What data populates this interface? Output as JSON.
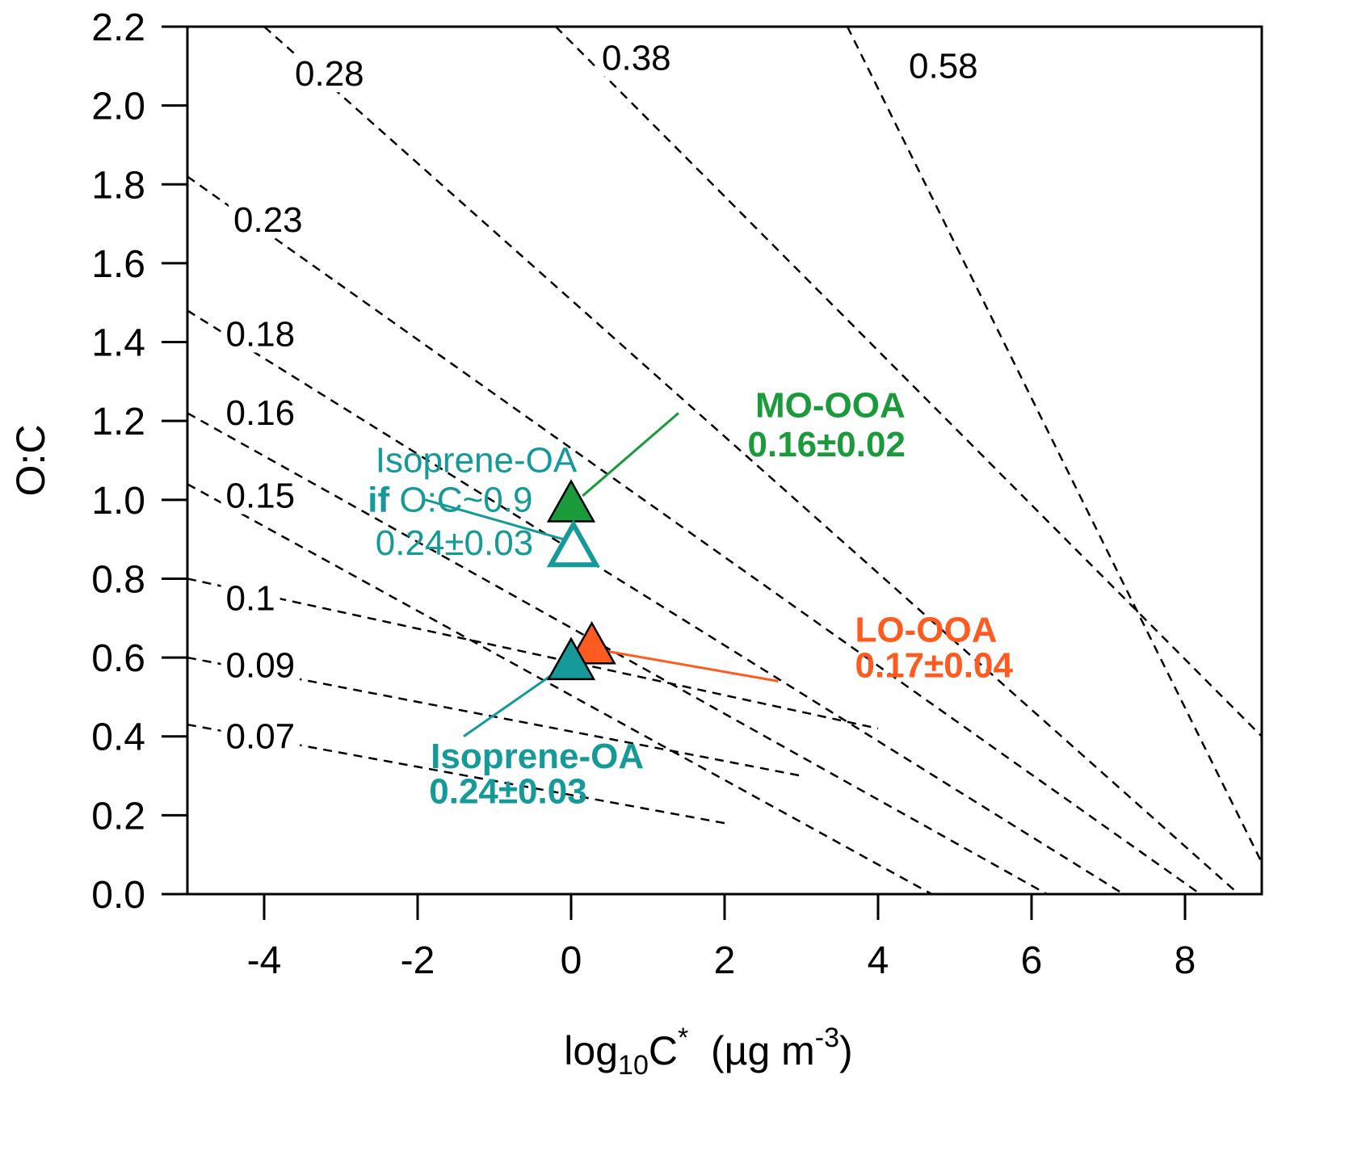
{
  "chart_data": {
    "type": "scatter",
    "title": "",
    "xlabel": {
      "base": "log",
      "sub": "10",
      "main": "C",
      "sup": "*",
      "unit_open": "  (µg m",
      "unit_sup": "-3",
      "unit_close": ")"
    },
    "ylabel": "O:C",
    "xlim": [
      -5,
      9
    ],
    "ylim": [
      0,
      2.2
    ],
    "xticks": [
      -4,
      -2,
      0,
      2,
      4,
      6,
      8
    ],
    "yticks": [
      0.0,
      0.2,
      0.4,
      0.6,
      0.8,
      1.0,
      1.2,
      1.4,
      1.6,
      1.8,
      2.0,
      2.2
    ],
    "ytick_labels": [
      "0.0",
      "0.2",
      "0.4",
      "0.6",
      "0.8",
      "1.0",
      "1.2",
      "1.4",
      "1.6",
      "1.8",
      "2.0",
      "2.2"
    ],
    "grid": false,
    "isolines": [
      {
        "label": "0.07",
        "p1": [
          -5,
          0.43
        ],
        "p2": [
          2,
          0.18
        ],
        "label_at": [
          -4.5,
          0.37
        ]
      },
      {
        "label": "0.09",
        "p1": [
          -5,
          0.6
        ],
        "p2": [
          3,
          0.3
        ],
        "label_at": [
          -4.5,
          0.55
        ]
      },
      {
        "label": "0.1",
        "p1": [
          -5,
          0.8
        ],
        "p2": [
          4,
          0.42
        ],
        "label_at": [
          -4.5,
          0.72
        ]
      },
      {
        "label": "0.15",
        "p1": [
          -5,
          1.04
        ],
        "p2": [
          4.7,
          0.0
        ],
        "label_at": [
          -4.5,
          0.98
        ]
      },
      {
        "label": "0.16",
        "p1": [
          -5,
          1.22
        ],
        "p2": [
          6.2,
          0.0
        ],
        "label_at": [
          -4.5,
          1.19
        ]
      },
      {
        "label": "0.18",
        "p1": [
          -5,
          1.48
        ],
        "p2": [
          7.2,
          0.0
        ],
        "label_at": [
          -4.5,
          1.39
        ]
      },
      {
        "label": "0.23",
        "p1": [
          -5,
          1.82
        ],
        "p2": [
          8.2,
          0.0
        ],
        "label_at": [
          -4.4,
          1.68
        ]
      },
      {
        "label": "0.28",
        "p1": [
          -4.0,
          2.2
        ],
        "p2": [
          8.7,
          0.0
        ],
        "label_at": [
          -3.6,
          2.05
        ]
      },
      {
        "label": "0.38",
        "p1": [
          -0.2,
          2.2
        ],
        "p2": [
          9,
          0.4
        ],
        "label_at": [
          0.4,
          2.09
        ]
      },
      {
        "label": "0.58",
        "p1": [
          3.6,
          2.2
        ],
        "p2": [
          9,
          0.08
        ],
        "label_at": [
          4.4,
          2.07
        ]
      }
    ],
    "series": [
      {
        "name": "MO-OOA",
        "x": 0.0,
        "y": 0.99,
        "color": "#1a9a3a",
        "filled": true
      },
      {
        "name": "Isoprene-OA if O:C~0.9",
        "x": 0.03,
        "y": 0.88,
        "color": "#159999",
        "filled": false
      },
      {
        "name": "LO-OOA",
        "x": 0.27,
        "y": 0.63,
        "color": "#ff5a1f",
        "filled": true
      },
      {
        "name": "Isoprene-OA",
        "x": 0.0,
        "y": 0.59,
        "color": "#159999",
        "filled": true
      }
    ],
    "annotations": [
      {
        "name": "mo-ooa",
        "lines": [
          {
            "text": "MO-OOA",
            "x": 2.4,
            "y": 1.21,
            "bold": true
          },
          {
            "text": "0.16±0.02",
            "x": 2.3,
            "y": 1.11,
            "bold": true
          }
        ],
        "color": "#1a9a3a",
        "leader": [
          [
            0.15,
            1.01
          ],
          [
            1.4,
            1.22
          ]
        ]
      },
      {
        "name": "isoprene-if",
        "lines": [
          {
            "text": "Isoprene-OA",
            "x": -2.55,
            "y": 1.07,
            "bold": false
          },
          {
            "text_bold": "if",
            "text": " O:C~0.9",
            "x": -2.65,
            "y": 0.97,
            "bold": false
          },
          {
            "text": "0.24±0.03",
            "x": -2.55,
            "y": 0.86,
            "bold": false
          }
        ],
        "color": "#159999",
        "leader": [
          [
            -1.9,
            1.0
          ],
          [
            -0.1,
            0.9
          ]
        ]
      },
      {
        "name": "lo-ooa",
        "lines": [
          {
            "text": "LO-OOA",
            "x": 3.7,
            "y": 0.64,
            "bold": true
          },
          {
            "text": "0.17±0.04",
            "x": 3.7,
            "y": 0.55,
            "bold": true
          }
        ],
        "color": "#ff5a1f",
        "leader": [
          [
            0.35,
            0.62
          ],
          [
            2.7,
            0.54
          ]
        ]
      },
      {
        "name": "isoprene",
        "lines": [
          {
            "text": "Isoprene-OA",
            "x": -1.83,
            "y": 0.32,
            "bold": true
          },
          {
            "text": "0.24±0.03",
            "x": -1.85,
            "y": 0.23,
            "bold": true
          }
        ],
        "color": "#159999",
        "leader": [
          [
            -1.4,
            0.4
          ],
          [
            0.0,
            0.59
          ]
        ]
      }
    ]
  }
}
